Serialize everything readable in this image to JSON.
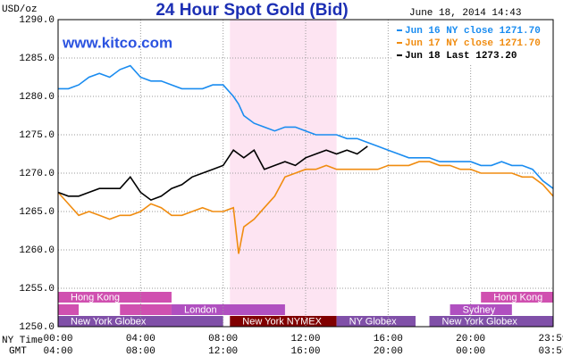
{
  "chart_data": {
    "type": "line",
    "title": "24 Hour Spot Gold (Bid)",
    "timestamp": "June 18, 2014 14:43",
    "watermark": "www.kitco.com",
    "ylabel": "USD/oz",
    "xlabel": "NY Time",
    "x2label": "GMT",
    "xlim": [
      0,
      24
    ],
    "xticks": [
      {
        "value": 0,
        "label": "00:00"
      },
      {
        "value": 4,
        "label": "04:00"
      },
      {
        "value": 8,
        "label": "08:00"
      },
      {
        "value": 12,
        "label": "12:00"
      },
      {
        "value": 16,
        "label": "16:00"
      },
      {
        "value": 20,
        "label": "20:00"
      },
      {
        "value": 24,
        "label": "23:59"
      }
    ],
    "x2ticklabels": [
      "04:00",
      "08:00",
      "12:00",
      "16:00",
      "20:00",
      "00:00",
      "03:59"
    ],
    "ylim": [
      1250,
      1290
    ],
    "yticks": [
      {
        "value": 1250,
        "label": "1250.0"
      },
      {
        "value": 1255,
        "label": "1255.0"
      },
      {
        "value": 1260,
        "label": "1260.0"
      },
      {
        "value": 1265,
        "label": "1265.0"
      },
      {
        "value": 1270,
        "label": "1270.0"
      },
      {
        "value": 1275,
        "label": "1275.0"
      },
      {
        "value": 1280,
        "label": "1280.0"
      },
      {
        "value": 1285,
        "label": "1285.0"
      },
      {
        "value": 1290,
        "label": "1290.0"
      }
    ],
    "grid": true,
    "legend": "top-right",
    "highlight": {
      "start": 8.33,
      "end": 13.5,
      "color": "#fde4f2"
    },
    "x": [
      0,
      0.5,
      1,
      1.5,
      2,
      2.5,
      3,
      3.5,
      4,
      4.5,
      5,
      5.5,
      6,
      6.5,
      7,
      7.5,
      8,
      8.5,
      8.75,
      9,
      9.5,
      10,
      10.5,
      11,
      11.5,
      12,
      12.5,
      13,
      13.5,
      14,
      14.5,
      15,
      15.5,
      16,
      16.5,
      17,
      17.5,
      18,
      18.5,
      19,
      19.5,
      20,
      20.5,
      21,
      21.5,
      22,
      22.5,
      23,
      23.5,
      24
    ],
    "series": [
      {
        "name": "Jun 16 NY close 1271.70",
        "color": "#1a8cf0",
        "values": [
          1281,
          1281,
          1281.5,
          1282.5,
          1283,
          1282.5,
          1283.5,
          1284,
          1282.5,
          1282,
          1282,
          1281.5,
          1281,
          1281,
          1281,
          1281.5,
          1281.5,
          1280,
          1279,
          1277.5,
          1276.5,
          1276,
          1275.5,
          1276,
          1276,
          1275.5,
          1275,
          1275,
          1275,
          1274.5,
          1274.5,
          1274,
          1273.5,
          1273,
          1272.5,
          1272,
          1272,
          1272,
          1271.5,
          1271.5,
          1271.5,
          1271.5,
          1271,
          1271,
          1271.5,
          1271,
          1271,
          1270.5,
          1269,
          1268
        ]
      },
      {
        "name": "Jun 17 NY close 1271.70",
        "color": "#f08c10",
        "values": [
          1267.5,
          1266,
          1264.5,
          1265,
          1264.5,
          1264,
          1264.5,
          1264.5,
          1265,
          1266,
          1265.5,
          1264.5,
          1264.5,
          1265,
          1265.5,
          1265,
          1265,
          1265.5,
          1259.5,
          1263,
          1264,
          1265.5,
          1267,
          1269.5,
          1270,
          1270.5,
          1270.5,
          1271,
          1270.5,
          1270.5,
          1270.5,
          1270.5,
          1270.5,
          1271,
          1271,
          1271,
          1271.5,
          1271.5,
          1271,
          1271,
          1270.5,
          1270.5,
          1270,
          1270,
          1270,
          1270,
          1269.5,
          1269.5,
          1268.5,
          1267
        ]
      },
      {
        "name": "Jun 18 Last 1273.20",
        "color": "#000000",
        "values": [
          1267.5,
          1267,
          1267,
          1267.5,
          1268,
          1268,
          1268,
          1269.5,
          1267.5,
          1266.5,
          1267,
          1268,
          1268.5,
          1269.5,
          1270,
          1270.5,
          1271,
          1273,
          1272.5,
          1272,
          1273,
          1270.5,
          1271,
          1271.5,
          1271,
          1272,
          1272.5,
          1273,
          1272.5,
          1273,
          1272.5,
          1273.5,
          null,
          null,
          null,
          null,
          null,
          null,
          null,
          null,
          null,
          null,
          null,
          null,
          null,
          null,
          null,
          null,
          null,
          null
        ]
      }
    ],
    "markets": [
      {
        "name": "Hong Kong",
        "row": 0,
        "start": 0,
        "end": 5.5,
        "color": "#d050b0"
      },
      {
        "name": "Hong Kong",
        "row": 0,
        "start": 20.5,
        "end": 24,
        "color": "#d050b0"
      },
      {
        "name": "London",
        "row": 1,
        "start": 5.5,
        "end": 11,
        "color": "#b050c0"
      },
      {
        "name": "Sydney",
        "row": 1,
        "start": 19,
        "end": 22,
        "color": "#b050c0"
      },
      {
        "name": "New York Globex",
        "row": 2,
        "start": 0,
        "end": 8,
        "color": "#8050a8"
      },
      {
        "name": "New York NYMEX",
        "row": 2,
        "start": 8.33,
        "end": 13.5,
        "color": "#800000"
      },
      {
        "name": "NY Globex",
        "row": 2,
        "start": 13.5,
        "end": 17.33,
        "color": "#8050a8"
      },
      {
        "name": "New York Globex",
        "row": 2,
        "start": 18,
        "end": 24,
        "color": "#8050a8"
      }
    ]
  }
}
